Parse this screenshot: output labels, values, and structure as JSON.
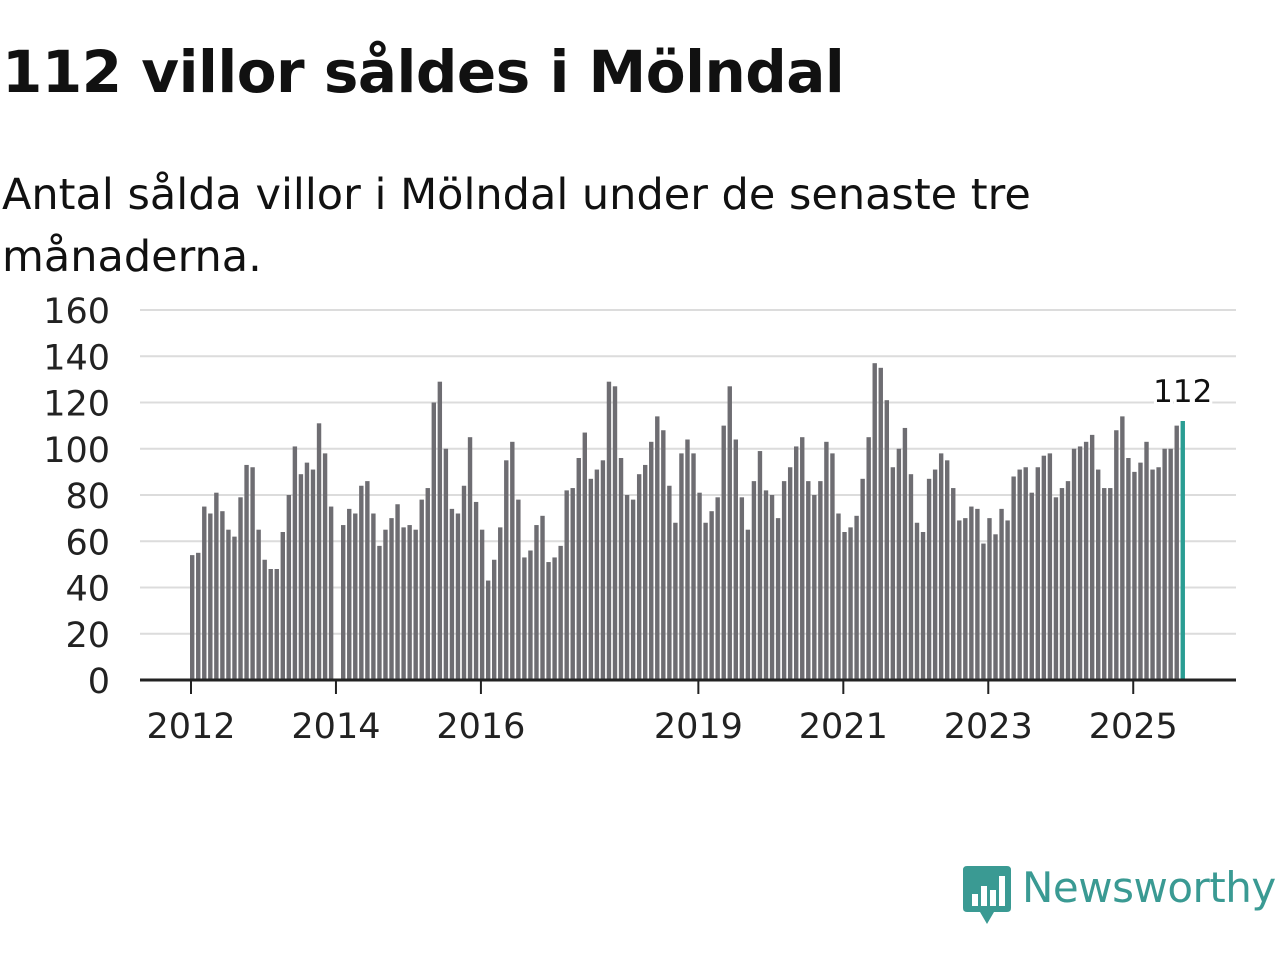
{
  "header": {
    "title": "112 villor såldes i Mölndal",
    "subtitle": "Antal sålda villor i Mölndal under de senaste tre månaderna."
  },
  "brand": {
    "name": "Newsworthy",
    "color": "#3a9a93"
  },
  "chart_data": {
    "type": "bar",
    "title": "112 villor såldes i Mölndal",
    "subtitle": "Antal sålda villor i Mölndal under de senaste tre månaderna.",
    "xlabel": "",
    "ylabel": "",
    "ylim": [
      0,
      160
    ],
    "y_ticks": [
      "0",
      "20",
      "40",
      "60",
      "80",
      "100",
      "120",
      "140",
      "160"
    ],
    "x_ticks": [
      {
        "label": "2012",
        "index": 0
      },
      {
        "label": "2014",
        "index": 24
      },
      {
        "label": "2016",
        "index": 48
      },
      {
        "label": "2019",
        "index": 84
      },
      {
        "label": "2021",
        "index": 108
      },
      {
        "label": "2023",
        "index": 132
      },
      {
        "label": "2025",
        "index": 156
      }
    ],
    "grid": true,
    "bar_color": "#6e6d72",
    "highlight_color": "#2a9d93",
    "highlight_label": "112",
    "values": [
      54,
      55,
      75,
      72,
      81,
      73,
      65,
      62,
      79,
      93,
      92,
      65,
      52,
      48,
      48,
      64,
      80,
      101,
      89,
      94,
      91,
      111,
      98,
      75,
      0,
      67,
      74,
      72,
      84,
      86,
      72,
      58,
      65,
      70,
      76,
      66,
      67,
      65,
      78,
      83,
      120,
      129,
      100,
      74,
      72,
      84,
      105,
      77,
      65,
      43,
      52,
      66,
      95,
      103,
      78,
      53,
      56,
      67,
      71,
      51,
      53,
      58,
      82,
      83,
      96,
      107,
      87,
      91,
      95,
      129,
      127,
      96,
      80,
      78,
      89,
      93,
      103,
      114,
      108,
      84,
      68,
      98,
      104,
      98,
      81,
      68,
      73,
      79,
      110,
      127,
      104,
      79,
      65,
      86,
      99,
      82,
      80,
      70,
      86,
      92,
      101,
      105,
      86,
      80,
      86,
      103,
      98,
      72,
      64,
      66,
      71,
      87,
      105,
      137,
      135,
      121,
      92,
      100,
      109,
      89,
      68,
      64,
      87,
      91,
      98,
      95,
      83,
      69,
      70,
      75,
      74,
      59,
      70,
      63,
      74,
      69,
      88,
      91,
      92,
      81,
      92,
      97,
      98,
      79,
      83,
      86,
      100,
      101,
      103,
      106,
      91,
      83,
      83,
      108,
      114,
      96,
      90,
      94,
      103,
      91,
      92,
      100,
      100,
      110,
      112
    ]
  }
}
